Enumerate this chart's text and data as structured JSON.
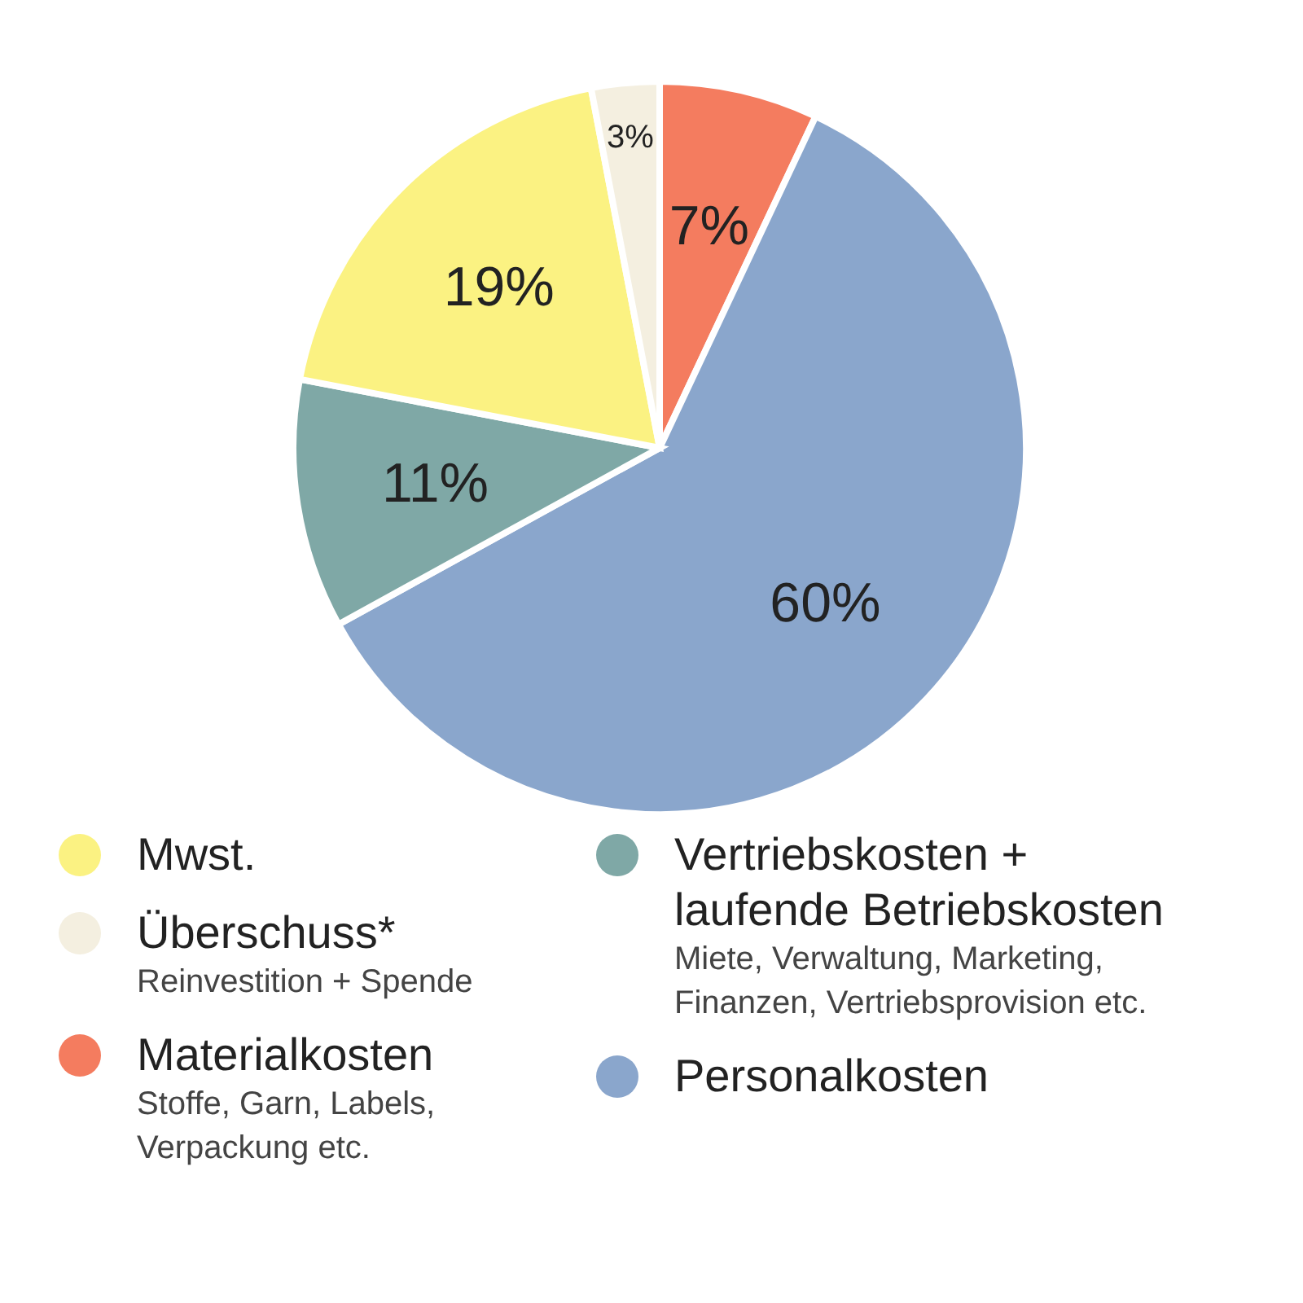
{
  "chart_data": {
    "type": "pie",
    "categories": [
      "Materialkosten",
      "Personalkosten",
      "Vertriebskosten + laufende Betriebskosten",
      "Mwst.",
      "Überschuss*"
    ],
    "values": [
      7,
      60,
      11,
      19,
      3
    ],
    "value_labels": [
      "7%",
      "60%",
      "11%",
      "19%",
      "3%"
    ],
    "colors": [
      "#f47c5f",
      "#8aa6cc",
      "#7fa8a6",
      "#fbf282",
      "#f4efe0"
    ],
    "legend": "bottom",
    "annotations": [
      {
        "text": "Reinvestition + Spende",
        "x": "Überschuss*"
      },
      {
        "text": "Stoffe, Garn, Labels, Verpackung etc.",
        "x": "Materialkosten"
      },
      {
        "text": "Miete, Verwaltung, Marketing, Finanzen, Vertriebsprovision etc.",
        "x": "Vertriebskosten + laufende Betriebskosten"
      }
    ]
  }
}
